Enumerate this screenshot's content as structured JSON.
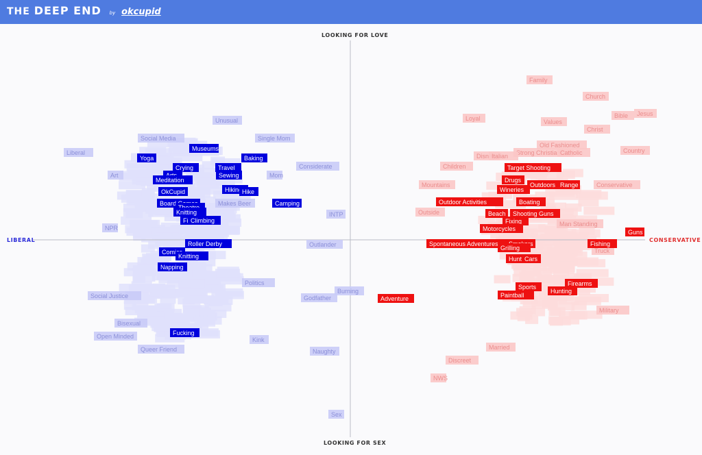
{
  "header": {
    "title_left": "THE",
    "title_main": "DEEP END",
    "by": "by",
    "logo": "okcupid"
  },
  "axes": {
    "top": "LOOKING FOR LOVE",
    "bottom": "LOOKING FOR SEX",
    "left": "LIBERAL",
    "right": "CONSERVATIVE"
  },
  "colors": {
    "liberal": "#0000dd",
    "liberal_faded": "#c9cbf7",
    "conservative": "#ee1111",
    "conservative_faded": "#fbc7c7",
    "header": "#4f7be0",
    "axis_line": "#b9bcc6"
  },
  "chart_data": {
    "type": "scatter",
    "xlabel_left": "LIBERAL",
    "xlabel_right": "CONSERVATIVE",
    "ylabel_top": "LOOKING FOR LOVE",
    "ylabel_bottom": "LOOKING FOR SEX",
    "xlim": [
      -1,
      1
    ],
    "ylim": [
      -1,
      1
    ],
    "highlighted": [
      {
        "label": "Museums",
        "x": -0.465,
        "y": 0.454,
        "group": "liberal"
      },
      {
        "label": "Yoga",
        "x": -0.645,
        "y": 0.407,
        "group": "liberal"
      },
      {
        "label": "Baking",
        "x": -0.304,
        "y": 0.407,
        "group": "liberal"
      },
      {
        "label": "Crying",
        "x": -0.522,
        "y": 0.361,
        "group": "liberal"
      },
      {
        "label": "Travel",
        "x": -0.387,
        "y": 0.361,
        "group": "liberal"
      },
      {
        "label": "Arts",
        "x": -0.563,
        "y": 0.323,
        "group": "liberal"
      },
      {
        "label": "Sewing",
        "x": -0.385,
        "y": 0.323,
        "group": "liberal"
      },
      {
        "label": "Meditation",
        "x": -0.563,
        "y": 0.299,
        "group": "liberal"
      },
      {
        "label": "Hiking",
        "x": -0.365,
        "y": 0.252,
        "group": "liberal"
      },
      {
        "label": "Hike",
        "x": -0.322,
        "y": 0.24,
        "group": "liberal"
      },
      {
        "label": "OkCupid",
        "x": -0.563,
        "y": 0.24,
        "group": "liberal"
      },
      {
        "label": "Board Games",
        "x": -0.545,
        "y": 0.182,
        "group": "liberal"
      },
      {
        "label": "Camping",
        "x": -0.202,
        "y": 0.182,
        "group": "liberal"
      },
      {
        "label": "Theatre",
        "x": -0.508,
        "y": 0.162,
        "group": "liberal"
      },
      {
        "label": "Knitting",
        "x": -0.508,
        "y": 0.139,
        "group": "liberal"
      },
      {
        "label": "Film",
        "x": -0.508,
        "y": 0.098,
        "group": "liberal"
      },
      {
        "label": "Climbing",
        "x": -0.464,
        "y": 0.098,
        "group": "liberal"
      },
      {
        "label": "Roller Derby",
        "x": -0.45,
        "y": -0.017,
        "group": "liberal"
      },
      {
        "label": "Comics",
        "x": -0.565,
        "y": -0.057,
        "group": "liberal"
      },
      {
        "label": "Knitting",
        "x": -0.503,
        "y": -0.077,
        "group": "liberal"
      },
      {
        "label": "Napping",
        "x": -0.565,
        "y": -0.133,
        "group": "liberal"
      },
      {
        "label": "Fucking",
        "x": -0.525,
        "y": -0.456,
        "group": "liberal"
      },
      {
        "label": "Target Shooting",
        "x": 0.58,
        "y": 0.361,
        "group": "conservative"
      },
      {
        "label": "Drugs",
        "x": 0.516,
        "y": 0.299,
        "group": "conservative"
      },
      {
        "label": "Outdoors",
        "x": 0.612,
        "y": 0.276,
        "group": "conservative"
      },
      {
        "label": "Range",
        "x": 0.693,
        "y": 0.276,
        "group": "conservative"
      },
      {
        "label": "Wineries",
        "x": 0.518,
        "y": 0.25,
        "group": "conservative"
      },
      {
        "label": "Outdoor Activities",
        "x": 0.379,
        "y": 0.19,
        "group": "conservative"
      },
      {
        "label": "Boating",
        "x": 0.573,
        "y": 0.19,
        "group": "conservative"
      },
      {
        "label": "Beach",
        "x": 0.464,
        "y": 0.133,
        "group": "conservative"
      },
      {
        "label": "Shooting Guns",
        "x": 0.585,
        "y": 0.133,
        "group": "conservative"
      },
      {
        "label": "Fixing",
        "x": 0.524,
        "y": 0.094,
        "group": "conservative"
      },
      {
        "label": "Motorcycles",
        "x": 0.48,
        "y": 0.057,
        "group": "conservative"
      },
      {
        "label": "Guns",
        "x": 0.902,
        "y": 0.04,
        "group": "conservative"
      },
      {
        "label": "Spontaneous Adventures",
        "x": 0.37,
        "y": -0.017,
        "group": "conservative"
      },
      {
        "label": "Smokers",
        "x": 0.541,
        "y": -0.017,
        "group": "conservative"
      },
      {
        "label": "Fishing",
        "x": 0.798,
        "y": -0.017,
        "group": "conservative"
      },
      {
        "label": "Grilling",
        "x": 0.519,
        "y": -0.037,
        "group": "conservative"
      },
      {
        "label": "Hunt",
        "x": 0.524,
        "y": -0.093,
        "group": "conservative"
      },
      {
        "label": "Cars",
        "x": 0.574,
        "y": -0.093,
        "group": "conservative"
      },
      {
        "label": "Firearms",
        "x": 0.733,
        "y": -0.213,
        "group": "conservative"
      },
      {
        "label": "Sports",
        "x": 0.565,
        "y": -0.23,
        "group": "conservative"
      },
      {
        "label": "Hunting",
        "x": 0.672,
        "y": -0.25,
        "group": "conservative"
      },
      {
        "label": "Paintball",
        "x": 0.524,
        "y": -0.27,
        "group": "conservative"
      },
      {
        "label": "Adventure",
        "x": 0.144,
        "y": -0.288,
        "group": "conservative"
      }
    ],
    "faded": [
      {
        "label": "Family",
        "x": 0.601,
        "y": 0.794,
        "group": "conservative"
      },
      {
        "label": "Church",
        "x": 0.779,
        "y": 0.711,
        "group": "conservative"
      },
      {
        "label": "Bible",
        "x": 0.864,
        "y": 0.616,
        "group": "conservative"
      },
      {
        "label": "Jesus",
        "x": 0.935,
        "y": 0.627,
        "group": "conservative"
      },
      {
        "label": "Values",
        "x": 0.646,
        "y": 0.586,
        "group": "conservative"
      },
      {
        "label": "Loyal",
        "x": 0.393,
        "y": 0.604,
        "group": "conservative"
      },
      {
        "label": "Christ",
        "x": 0.782,
        "y": 0.55,
        "group": "conservative"
      },
      {
        "label": "Country",
        "x": 0.904,
        "y": 0.445,
        "group": "conservative"
      },
      {
        "label": "Old Fashioned",
        "x": 0.67,
        "y": 0.471,
        "group": "conservative"
      },
      {
        "label": "Strong Christian",
        "x": 0.613,
        "y": 0.433,
        "group": "conservative"
      },
      {
        "label": "Catholic",
        "x": 0.709,
        "y": 0.433,
        "group": "conservative"
      },
      {
        "label": "Disney",
        "x": 0.433,
        "y": 0.416,
        "group": "conservative"
      },
      {
        "label": "Italian",
        "x": 0.485,
        "y": 0.416,
        "group": "conservative"
      },
      {
        "label": "Children",
        "x": 0.337,
        "y": 0.366,
        "group": "conservative"
      },
      {
        "label": "Conservative",
        "x": 0.846,
        "y": 0.274,
        "group": "conservative"
      },
      {
        "label": "Mountains",
        "x": 0.276,
        "y": 0.274,
        "group": "conservative"
      },
      {
        "label": "Outside",
        "x": 0.254,
        "y": 0.14,
        "group": "conservative"
      },
      {
        "label": "Man Standing",
        "x": 0.728,
        "y": 0.083,
        "group": "conservative"
      },
      {
        "label": "Truck",
        "x": 0.801,
        "y": -0.05,
        "group": "conservative"
      },
      {
        "label": "Military",
        "x": 0.832,
        "y": -0.345,
        "group": "conservative"
      },
      {
        "label": "Married",
        "x": 0.478,
        "y": -0.53,
        "group": "conservative"
      },
      {
        "label": "Discreet",
        "x": 0.355,
        "y": -0.594,
        "group": "conservative"
      },
      {
        "label": "NWS",
        "x": 0.28,
        "y": -0.68,
        "group": "conservative"
      },
      {
        "label": "Liberal",
        "x": -0.863,
        "y": 0.433,
        "group": "liberal"
      },
      {
        "label": "Unusual",
        "x": -0.39,
        "y": 0.594,
        "group": "liberal"
      },
      {
        "label": "Single Mom",
        "x": -0.24,
        "y": 0.506,
        "group": "liberal"
      },
      {
        "label": "Social Media",
        "x": -0.6,
        "y": 0.506,
        "group": "liberal"
      },
      {
        "label": "Considerate",
        "x": -0.104,
        "y": 0.367,
        "group": "liberal"
      },
      {
        "label": "Art",
        "x": -0.745,
        "y": 0.321,
        "group": "liberal"
      },
      {
        "label": "Mom",
        "x": -0.241,
        "y": 0.321,
        "group": "liberal"
      },
      {
        "label": "Makes Beer",
        "x": -0.366,
        "y": 0.184,
        "group": "liberal"
      },
      {
        "label": "NPR",
        "x": -0.762,
        "y": 0.06,
        "group": "liberal"
      },
      {
        "label": "INTP",
        "x": -0.045,
        "y": 0.128,
        "group": "liberal"
      },
      {
        "label": "Outlander",
        "x": -0.081,
        "y": -0.02,
        "group": "liberal"
      },
      {
        "label": "Politics",
        "x": -0.292,
        "y": -0.21,
        "group": "liberal"
      },
      {
        "label": "Social Justice",
        "x": -0.747,
        "y": -0.274,
        "group": "liberal"
      },
      {
        "label": "Godfather",
        "x": -0.1,
        "y": -0.285,
        "group": "liberal"
      },
      {
        "label": "Burning",
        "x": -0.004,
        "y": -0.25,
        "group": "liberal"
      },
      {
        "label": "Bisexual",
        "x": -0.695,
        "y": -0.41,
        "group": "liberal"
      },
      {
        "label": "Open Minded",
        "x": -0.744,
        "y": -0.476,
        "group": "liberal"
      },
      {
        "label": "Queer Friend",
        "x": -0.6,
        "y": -0.54,
        "group": "liberal"
      },
      {
        "label": "Kink",
        "x": -0.29,
        "y": -0.49,
        "group": "liberal"
      },
      {
        "label": "Naughty",
        "x": -0.082,
        "y": -0.55,
        "group": "liberal"
      },
      {
        "label": "Sex",
        "x": -0.045,
        "y": -0.86,
        "group": "liberal"
      }
    ]
  }
}
